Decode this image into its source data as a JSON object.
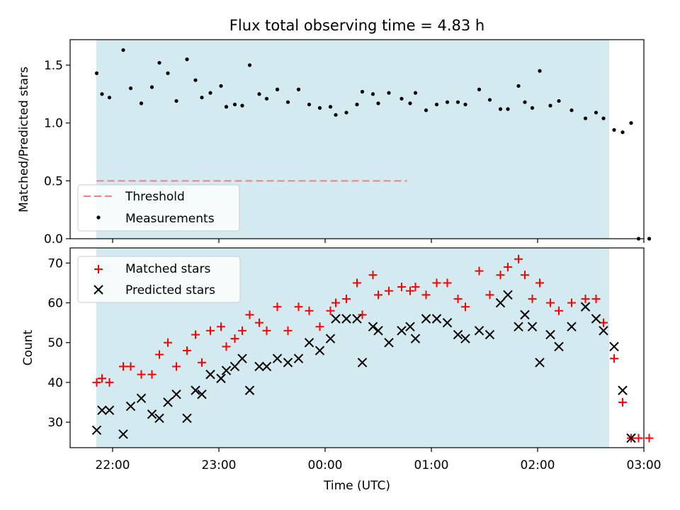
{
  "title": "Flux total observing time = 4.83 h",
  "x_axis_label": "Time (UTC)",
  "x_tick_labels": [
    "22:00",
    "23:00",
    "00:00",
    "01:00",
    "02:00",
    "03:00"
  ],
  "chart_data": [
    {
      "type": "scatter",
      "ylabel": "Matched/Predicted stars",
      "xlabel": "",
      "x_unit": "hours since 22:00 UTC",
      "xlim": [
        -0.4,
        5.0
      ],
      "ylim": [
        0.0,
        1.72
      ],
      "y_ticks": [
        0.0,
        0.5,
        1.0,
        1.5
      ],
      "y_tick_labels": [
        "0.0",
        "0.5",
        "1.0",
        "1.5"
      ],
      "observing_window": {
        "start": "21:52",
        "end": "02:41"
      },
      "legend": {
        "position": "lower-left",
        "entries": [
          "Threshold",
          "Measurements"
        ]
      },
      "threshold": {
        "name": "Threshold",
        "value": 0.5,
        "x_range": [
          -0.15,
          2.77
        ],
        "color": "#f08080"
      },
      "series": [
        {
          "name": "Measurements",
          "color": "#000000",
          "x": [
            -0.15,
            -0.1,
            -0.03,
            0.1,
            0.17,
            0.27,
            0.37,
            0.44,
            0.52,
            0.6,
            0.7,
            0.78,
            0.84,
            0.92,
            1.02,
            1.07,
            1.15,
            1.22,
            1.29,
            1.38,
            1.45,
            1.55,
            1.65,
            1.75,
            1.85,
            1.95,
            2.05,
            2.1,
            2.2,
            2.3,
            2.35,
            2.45,
            2.5,
            2.6,
            2.72,
            2.8,
            2.85,
            2.95,
            3.05,
            3.15,
            3.25,
            3.32,
            3.45,
            3.55,
            3.65,
            3.72,
            3.82,
            3.88,
            3.95,
            4.02,
            4.12,
            4.2,
            4.32,
            4.45,
            4.55,
            4.62,
            4.72,
            4.8,
            4.88,
            4.95,
            5.05
          ],
          "y": [
            1.43,
            1.25,
            1.22,
            1.63,
            1.3,
            1.17,
            1.31,
            1.52,
            1.43,
            1.19,
            1.55,
            1.37,
            1.22,
            1.26,
            1.32,
            1.14,
            1.16,
            1.15,
            1.5,
            1.25,
            1.21,
            1.29,
            1.18,
            1.29,
            1.16,
            1.13,
            1.14,
            1.07,
            1.09,
            1.16,
            1.27,
            1.25,
            1.17,
            1.26,
            1.21,
            1.17,
            1.26,
            1.11,
            1.16,
            1.18,
            1.18,
            1.16,
            1.29,
            1.2,
            1.12,
            1.12,
            1.32,
            1.18,
            1.13,
            1.45,
            1.15,
            1.19,
            1.11,
            1.04,
            1.09,
            1.04,
            0.94,
            0.92,
            1.0,
            0.0,
            0.0
          ]
        }
      ]
    },
    {
      "type": "scatter",
      "ylabel": "Count",
      "xlabel": "Time (UTC)",
      "x_unit": "hours since 22:00 UTC",
      "xlim": [
        -0.4,
        5.0
      ],
      "ylim": [
        23.6,
        73.8
      ],
      "y_ticks": [
        30,
        40,
        50,
        60,
        70
      ],
      "y_tick_labels": [
        "30",
        "40",
        "50",
        "60",
        "70"
      ],
      "observing_window": {
        "start": "21:52",
        "end": "02:41"
      },
      "legend": {
        "position": "upper-left",
        "entries": [
          "Matched stars",
          "Predicted stars"
        ]
      },
      "series": [
        {
          "name": "Matched stars",
          "marker": "+",
          "color": "#ff0000",
          "x": [
            -0.15,
            -0.1,
            -0.03,
            0.1,
            0.17,
            0.27,
            0.37,
            0.44,
            0.52,
            0.6,
            0.7,
            0.78,
            0.84,
            0.92,
            1.02,
            1.07,
            1.15,
            1.22,
            1.29,
            1.38,
            1.45,
            1.55,
            1.65,
            1.75,
            1.85,
            1.95,
            2.05,
            2.1,
            2.2,
            2.3,
            2.35,
            2.45,
            2.5,
            2.6,
            2.72,
            2.8,
            2.85,
            2.95,
            3.05,
            3.15,
            3.25,
            3.32,
            3.45,
            3.55,
            3.65,
            3.72,
            3.82,
            3.88,
            3.95,
            4.02,
            4.12,
            4.2,
            4.32,
            4.45,
            4.55,
            4.62,
            4.72,
            4.8,
            4.88,
            4.95,
            5.05
          ],
          "y": [
            40,
            41,
            40,
            44,
            44,
            42,
            42,
            47,
            50,
            44,
            48,
            52,
            45,
            53,
            54,
            49,
            51,
            53,
            57,
            55,
            53,
            59,
            53,
            59,
            58,
            54,
            58,
            60,
            61,
            65,
            57,
            67,
            62,
            63,
            64,
            63,
            64,
            62,
            65,
            65,
            61,
            59,
            68,
            62,
            67,
            69,
            71,
            67,
            61,
            65,
            60,
            58,
            60,
            61,
            61,
            55,
            46,
            35,
            26,
            26,
            26
          ]
        },
        {
          "name": "Predicted stars",
          "marker": "x",
          "color": "#000000",
          "x": [
            -0.15,
            -0.1,
            -0.03,
            0.1,
            0.17,
            0.27,
            0.37,
            0.44,
            0.52,
            0.6,
            0.7,
            0.78,
            0.84,
            0.92,
            1.02,
            1.07,
            1.15,
            1.22,
            1.29,
            1.38,
            1.45,
            1.55,
            1.65,
            1.75,
            1.85,
            1.95,
            2.05,
            2.1,
            2.2,
            2.3,
            2.35,
            2.45,
            2.5,
            2.6,
            2.72,
            2.8,
            2.85,
            2.95,
            3.05,
            3.15,
            3.25,
            3.32,
            3.45,
            3.55,
            3.65,
            3.72,
            3.82,
            3.88,
            3.95,
            4.02,
            4.12,
            4.2,
            4.32,
            4.45,
            4.55,
            4.62,
            4.72,
            4.8,
            4.88
          ],
          "y": [
            28,
            33,
            33,
            27,
            34,
            36,
            32,
            31,
            35,
            37,
            31,
            38,
            37,
            42,
            41,
            43,
            44,
            46,
            38,
            44,
            44,
            46,
            45,
            46,
            50,
            48,
            51,
            56,
            56,
            56,
            45,
            54,
            53,
            50,
            53,
            54,
            51,
            56,
            56,
            55,
            52,
            51,
            53,
            52,
            60,
            62,
            54,
            57,
            54,
            45,
            52,
            49,
            54,
            59,
            56,
            53,
            49,
            38,
            26
          ]
        }
      ]
    }
  ]
}
